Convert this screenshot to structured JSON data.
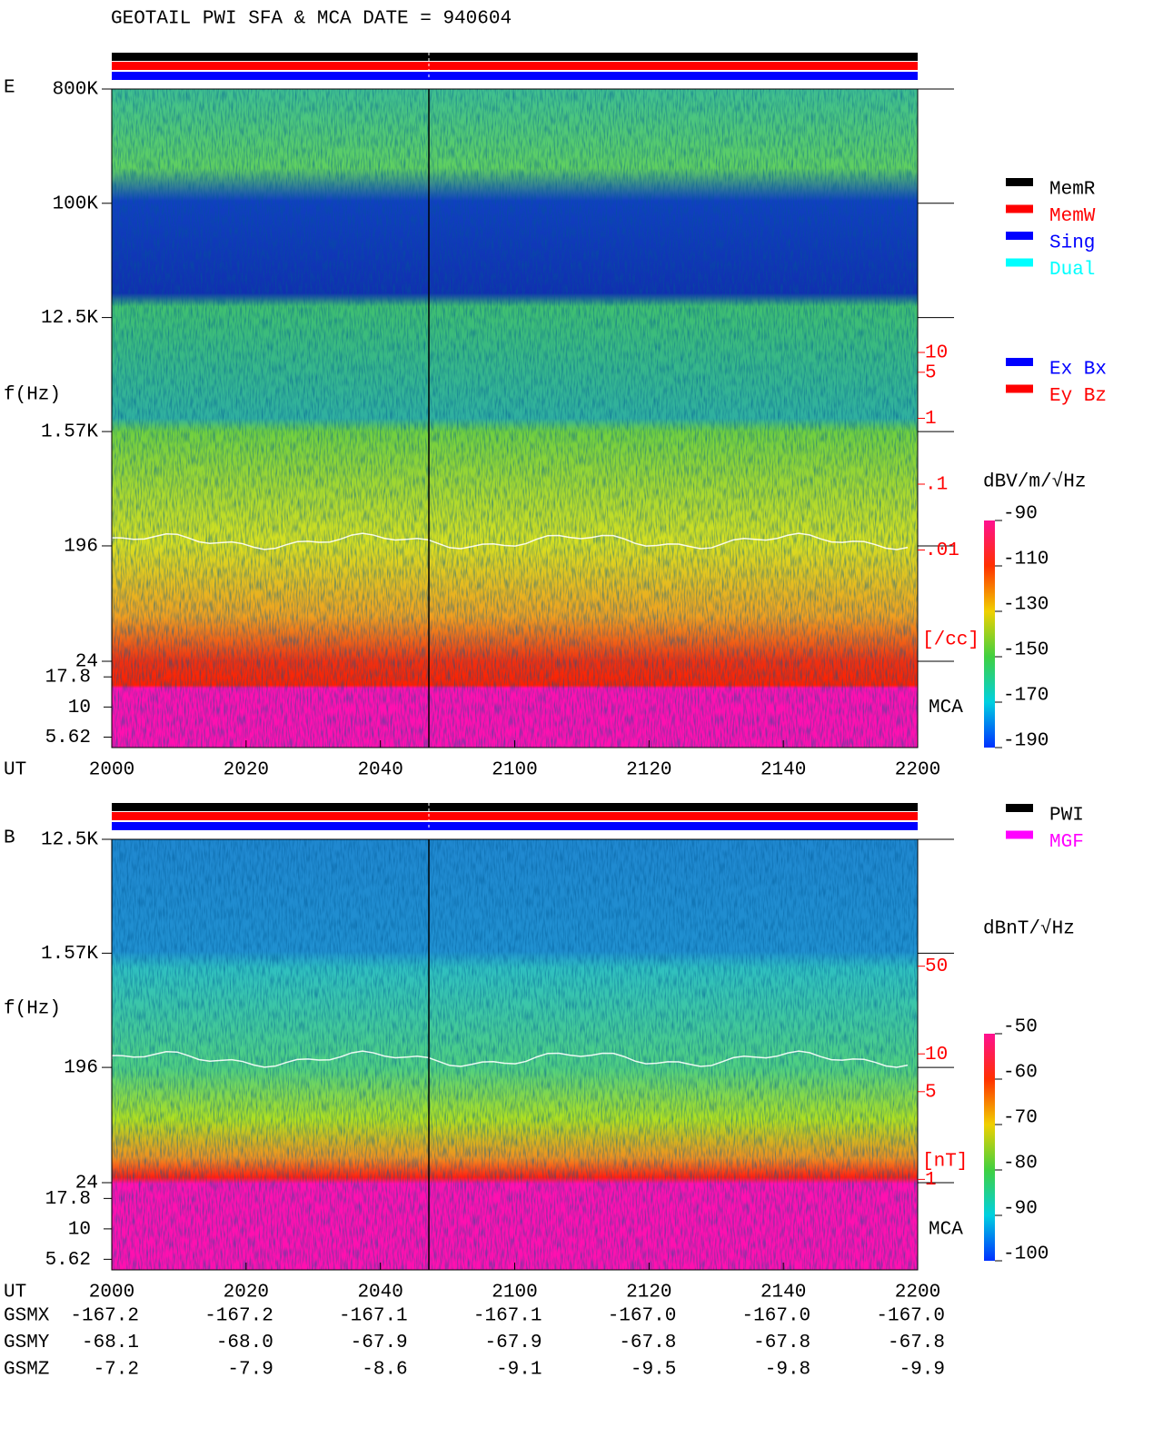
{
  "title": "GEOTAIL  PWI SFA & MCA   DATE = 940604",
  "chart_data": [
    {
      "type": "spectrogram",
      "panel_label": "E",
      "ylabel": "f(Hz)",
      "xlabel": "UT",
      "x": [
        "2000",
        "2020",
        "2040",
        "2100",
        "2120",
        "2140",
        "2200"
      ],
      "yscale": "log",
      "ylim": [
        24,
        800000
      ],
      "yticks": [
        {
          "value": 800000,
          "label": "800K"
        },
        {
          "value": 100000,
          "label": "100K"
        },
        {
          "value": 12500,
          "label": "12.5K"
        },
        {
          "value": 1570,
          "label": "1.57K"
        },
        196,
        24
      ],
      "mca_label": "MCA",
      "mca_ylim": [
        4.6,
        24
      ],
      "mca_yticks": [
        17.8,
        10,
        5.62
      ],
      "y2scale": "log",
      "y2lim": [
        1e-05,
        100000
      ],
      "y2color": "#ff0000",
      "y2label": "[/cc]",
      "y2ticks": [
        10,
        5,
        1,
        {
          "value": 0.1,
          "label": ".1"
        },
        {
          "value": 0.01,
          "label": ".01"
        }
      ],
      "colorbar": {
        "label": "dBV/m/√Hz",
        "zlim": [
          -190,
          -90
        ],
        "ticks": [
          -90,
          -110,
          -130,
          -150,
          -170,
          -190
        ]
      },
      "legend": [
        {
          "name": "MemR",
          "color": "#000000"
        },
        {
          "name": "MemW",
          "color": "#ff0000"
        },
        {
          "name": "Sing",
          "color": "#0000ff"
        },
        {
          "name": "Dual",
          "color": "#00ffff"
        }
      ],
      "legend2": [
        {
          "name": "Ex Bx",
          "color": "#0000ff"
        },
        {
          "name": "Ey Bz",
          "color": "#ff0000"
        }
      ]
    },
    {
      "type": "spectrogram",
      "panel_label": "B",
      "ylabel": "f(Hz)",
      "xlabel": "UT",
      "x": [
        "2000",
        "2020",
        "2040",
        "2100",
        "2120",
        "2140",
        "2200"
      ],
      "yscale": "log",
      "ylim": [
        24,
        12500
      ],
      "yticks": [
        {
          "value": 12500,
          "label": "12.5K"
        },
        {
          "value": 1570,
          "label": "1.57K"
        },
        196,
        24
      ],
      "mca_label": "MCA",
      "mca_ylim": [
        4.6,
        24
      ],
      "mca_yticks": [
        17.8,
        10,
        5.62
      ],
      "y2scale": "log",
      "y2lim": [
        0.19,
        513
      ],
      "y2color": "#ff0000",
      "y2label": "[nT]",
      "y2ticks": [
        50,
        10,
        5,
        1
      ],
      "colorbar": {
        "label": "dBnT/√Hz",
        "zlim": [
          -100,
          -50
        ],
        "ticks": [
          -50,
          -60,
          -70,
          -80,
          -90,
          -100
        ]
      },
      "legend": [
        {
          "name": "PWI",
          "color": "#000000"
        },
        {
          "name": "MGF",
          "color": "#ff00ff"
        }
      ]
    }
  ],
  "orbit": {
    "rows": [
      {
        "name": "GSMX",
        "values": [
          "-167.2",
          "-167.2",
          "-167.1",
          "-167.1",
          "-167.0",
          "-167.0",
          "-167.0"
        ]
      },
      {
        "name": "GSMY",
        "values": [
          "-68.1",
          "-68.0",
          "-67.9",
          "-67.9",
          "-67.8",
          "-67.8",
          "-67.8"
        ]
      },
      {
        "name": "GSMZ",
        "values": [
          "-7.2",
          "-7.9",
          "-8.6",
          "-9.1",
          "-9.5",
          "-9.8",
          "-9.9"
        ]
      }
    ]
  }
}
